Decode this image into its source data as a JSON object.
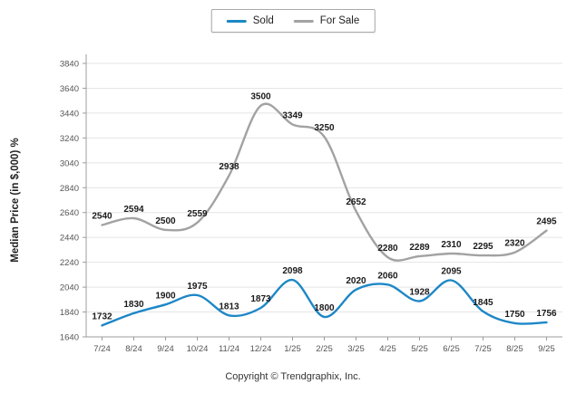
{
  "chart_data": {
    "type": "line",
    "title": "",
    "xlabel": "",
    "ylabel": "Median Price (in $,000) %",
    "categories": [
      "7/24",
      "8/24",
      "9/24",
      "10/24",
      "11/24",
      "12/24",
      "1/25",
      "2/25",
      "3/25",
      "4/25",
      "5/25",
      "6/25",
      "7/25",
      "8/25",
      "9/25"
    ],
    "series": [
      {
        "name": "Sold",
        "color": "#1d87c6",
        "values": [
          1732,
          1830,
          1900,
          1975,
          1813,
          1873,
          2098,
          1800,
          2020,
          2060,
          1928,
          2095,
          1845,
          1750,
          1756
        ]
      },
      {
        "name": "For Sale",
        "color": "#a2a2a2",
        "values": [
          2540,
          2594,
          2500,
          2559,
          2938,
          3500,
          3349,
          3250,
          2652,
          2280,
          2289,
          2310,
          2295,
          2320,
          2495
        ]
      }
    ],
    "ylim": [
      1640,
      3840
    ],
    "ytick_step": 200,
    "grid": true,
    "legend_position": "top"
  },
  "footer": {
    "copyright": "Copyright © Trendgraphix, Inc."
  }
}
